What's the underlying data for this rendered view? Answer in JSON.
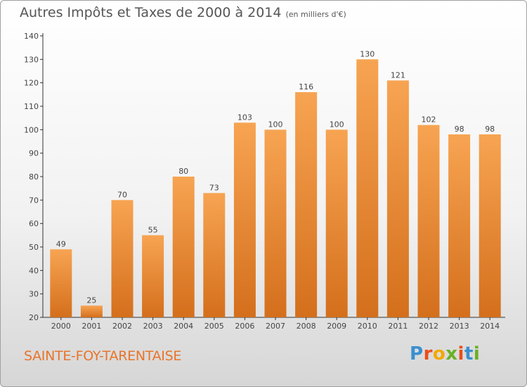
{
  "header": {
    "title": "Autres Impôts et Taxes de 2000 à 2014",
    "subtitle": "(en milliers d'€)"
  },
  "footer": {
    "commune": "SAINTE-FOY-TARENTAISE",
    "logo_text": "Proxiti",
    "logo_colors": [
      "#3a8fd0",
      "#e94e1b",
      "#f2a900",
      "#6ab023",
      "#e94e1b",
      "#3a8fd0",
      "#6ab023"
    ]
  },
  "colors": {
    "bar_light": "#f7a452",
    "bar_dark": "#d46f1c",
    "axis": "#333333",
    "text": "#444444"
  },
  "chart_data": {
    "type": "bar",
    "title": "Autres Impôts et Taxes de 2000 à 2014",
    "subtitle": "(en milliers d'€)",
    "categories": [
      "2000",
      "2001",
      "2002",
      "2003",
      "2004",
      "2005",
      "2006",
      "2007",
      "2008",
      "2009",
      "2010",
      "2011",
      "2012",
      "2013",
      "2014"
    ],
    "values": [
      49,
      25,
      70,
      55,
      80,
      73,
      103,
      100,
      116,
      100,
      130,
      121,
      102,
      98,
      98
    ],
    "ylim": [
      20,
      140
    ],
    "yticks": [
      20,
      30,
      40,
      50,
      60,
      70,
      80,
      90,
      100,
      110,
      120,
      130,
      140
    ],
    "grid": false,
    "data_labels": true
  }
}
